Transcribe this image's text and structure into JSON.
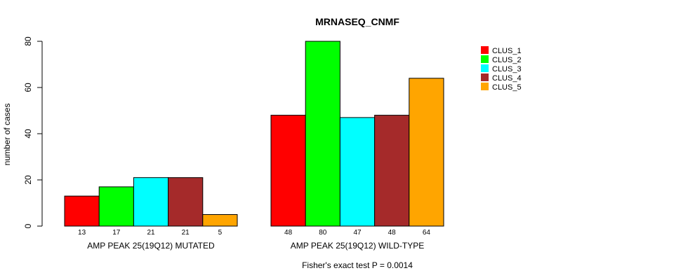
{
  "chart_data": {
    "type": "bar",
    "title": "MRNASEQ_CNMF",
    "ylabel": "number of cases",
    "xlabel": "",
    "ylim": [
      0,
      80
    ],
    "yticks": [
      0,
      20,
      40,
      60,
      80
    ],
    "grid": false,
    "legend_position": "top-right",
    "groups": [
      {
        "label": "AMP PEAK 25(19Q12) MUTATED",
        "values": [
          13,
          17,
          21,
          21,
          5
        ]
      },
      {
        "label": "AMP PEAK 25(19Q12) WILD-TYPE",
        "values": [
          48,
          80,
          47,
          48,
          64
        ]
      }
    ],
    "series": [
      {
        "name": "CLUS_1",
        "color": "#ff0000"
      },
      {
        "name": "CLUS_2",
        "color": "#00ff00"
      },
      {
        "name": "CLUS_3",
        "color": "#00ffff"
      },
      {
        "name": "CLUS_4",
        "color": "#a52a2a"
      },
      {
        "name": "CLUS_5",
        "color": "#ffa500"
      }
    ],
    "annotation": "Fisher's exact test P = 0.0014"
  }
}
